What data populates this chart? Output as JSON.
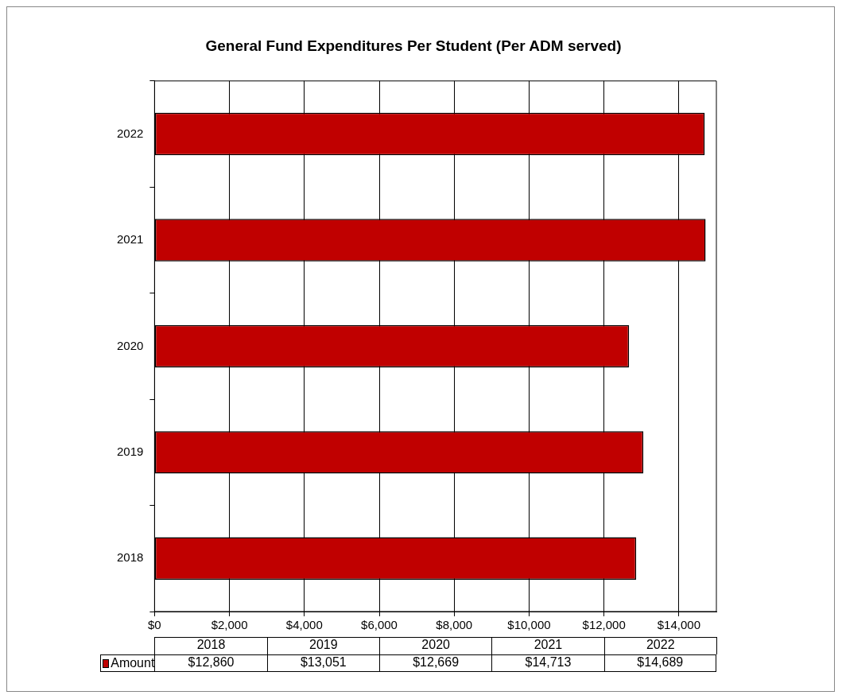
{
  "chart_data": {
    "type": "bar",
    "title": "General Fund Expenditures Per Student (Per ADM served)",
    "orientation": "horizontal",
    "categories": [
      "2022",
      "2021",
      "2020",
      "2019",
      "2018"
    ],
    "series": [
      {
        "name": "Amount",
        "color": "#c00000",
        "values": [
          14689,
          14713,
          12669,
          13051,
          12860
        ]
      }
    ],
    "xlim": [
      0,
      15000
    ],
    "xticks": [
      {
        "value": 0,
        "label": "$0"
      },
      {
        "value": 2000,
        "label": "$2,000"
      },
      {
        "value": 4000,
        "label": "$4,000"
      },
      {
        "value": 6000,
        "label": "$6,000"
      },
      {
        "value": 8000,
        "label": "$8,000"
      },
      {
        "value": 10000,
        "label": "$10,000"
      },
      {
        "value": 12000,
        "label": "$12,000"
      },
      {
        "value": 14000,
        "label": "$14,000"
      }
    ],
    "value_labels": [
      "$14,689",
      "$14,713",
      "$12,669",
      "$13,051",
      "$12,860"
    ],
    "grid": "x",
    "legend": "bottom"
  }
}
